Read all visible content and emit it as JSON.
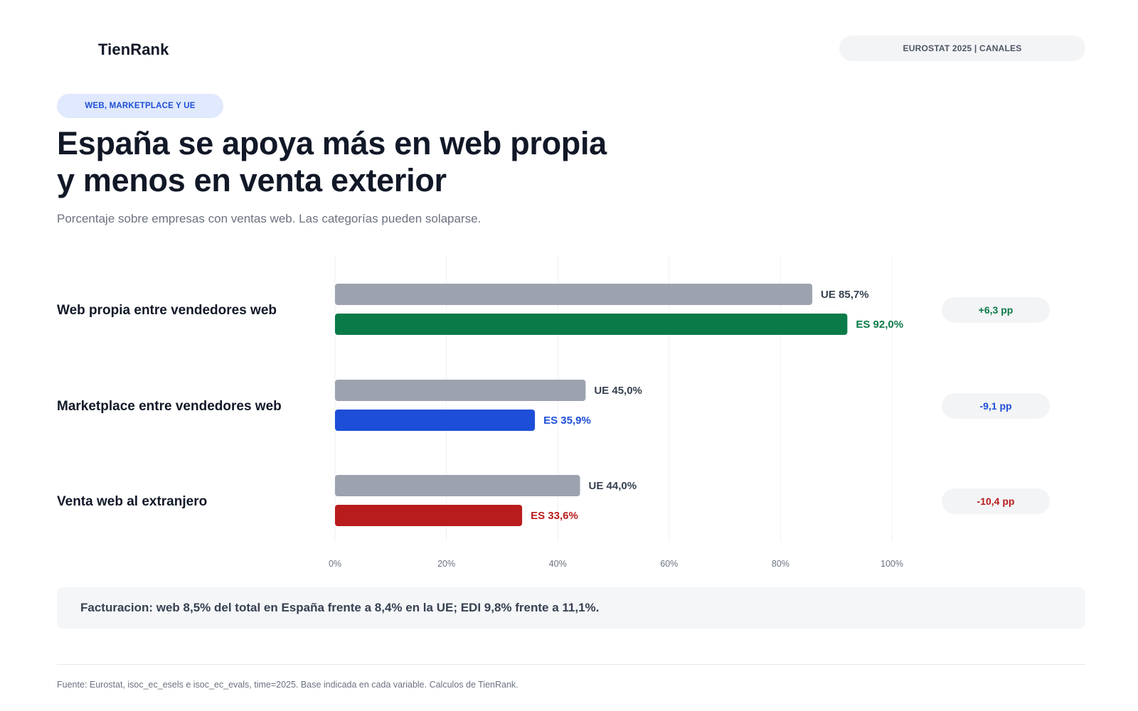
{
  "brand": {
    "name": "TienRank",
    "mark_color": "#ffffff"
  },
  "source_pill": "EUROSTAT 2025 | CANALES",
  "kicker": "WEB, MARKETPLACE Y UE",
  "title_lines": [
    "España se apoya más en web propia",
    "y menos en venta exterior"
  ],
  "subtitle": "Porcentaje sobre empresas con ventas web. Las categorías pueden solaparse.",
  "chart_data": {
    "type": "bar",
    "orientation": "horizontal",
    "xlim": [
      0,
      100
    ],
    "x_ticks": [
      "0%",
      "20%",
      "40%",
      "60%",
      "80%",
      "100%"
    ],
    "x_tick_values": [
      0,
      20,
      40,
      60,
      80,
      100
    ],
    "grid": true,
    "categories": [
      "Web propia entre vendedores web",
      "Marketplace entre vendedores web",
      "Venta web al extranjero"
    ],
    "series": [
      {
        "name": "UE",
        "values": [
          85.7,
          45.0,
          44.0
        ],
        "labels": [
          "UE 85,7%",
          "UE 45,0%",
          "UE 44,0%"
        ],
        "colors": [
          "#9ca3af",
          "#9ca3af",
          "#9ca3af"
        ],
        "label_color": "#374151"
      },
      {
        "name": "ES",
        "values": [
          92.0,
          35.9,
          33.6
        ],
        "labels": [
          "ES 92,0%",
          "ES 35,9%",
          "ES 33,6%"
        ],
        "colors": [
          "#0a7a48",
          "#1d4ed8",
          "#b91c1c"
        ],
        "label_colors": [
          "#0a7a48",
          "#1d4ed8",
          "#b91c1c"
        ]
      }
    ],
    "differences": [
      {
        "label": "+6,3 pp",
        "color": "#0a7a48"
      },
      {
        "label": "-9,1 pp",
        "color": "#1d4ed8"
      },
      {
        "label": "-10,4 pp",
        "color": "#b91c1c"
      }
    ]
  },
  "note": "Facturacion: web 8,5% del total en España frente a 8,4% en la UE; EDI 9,8% frente a 11,1%.",
  "footer": "Fuente: Eurostat, isoc_ec_esels e isoc_ec_evals, time=2025. Base indicada en cada variable. Calculos de TienRank."
}
